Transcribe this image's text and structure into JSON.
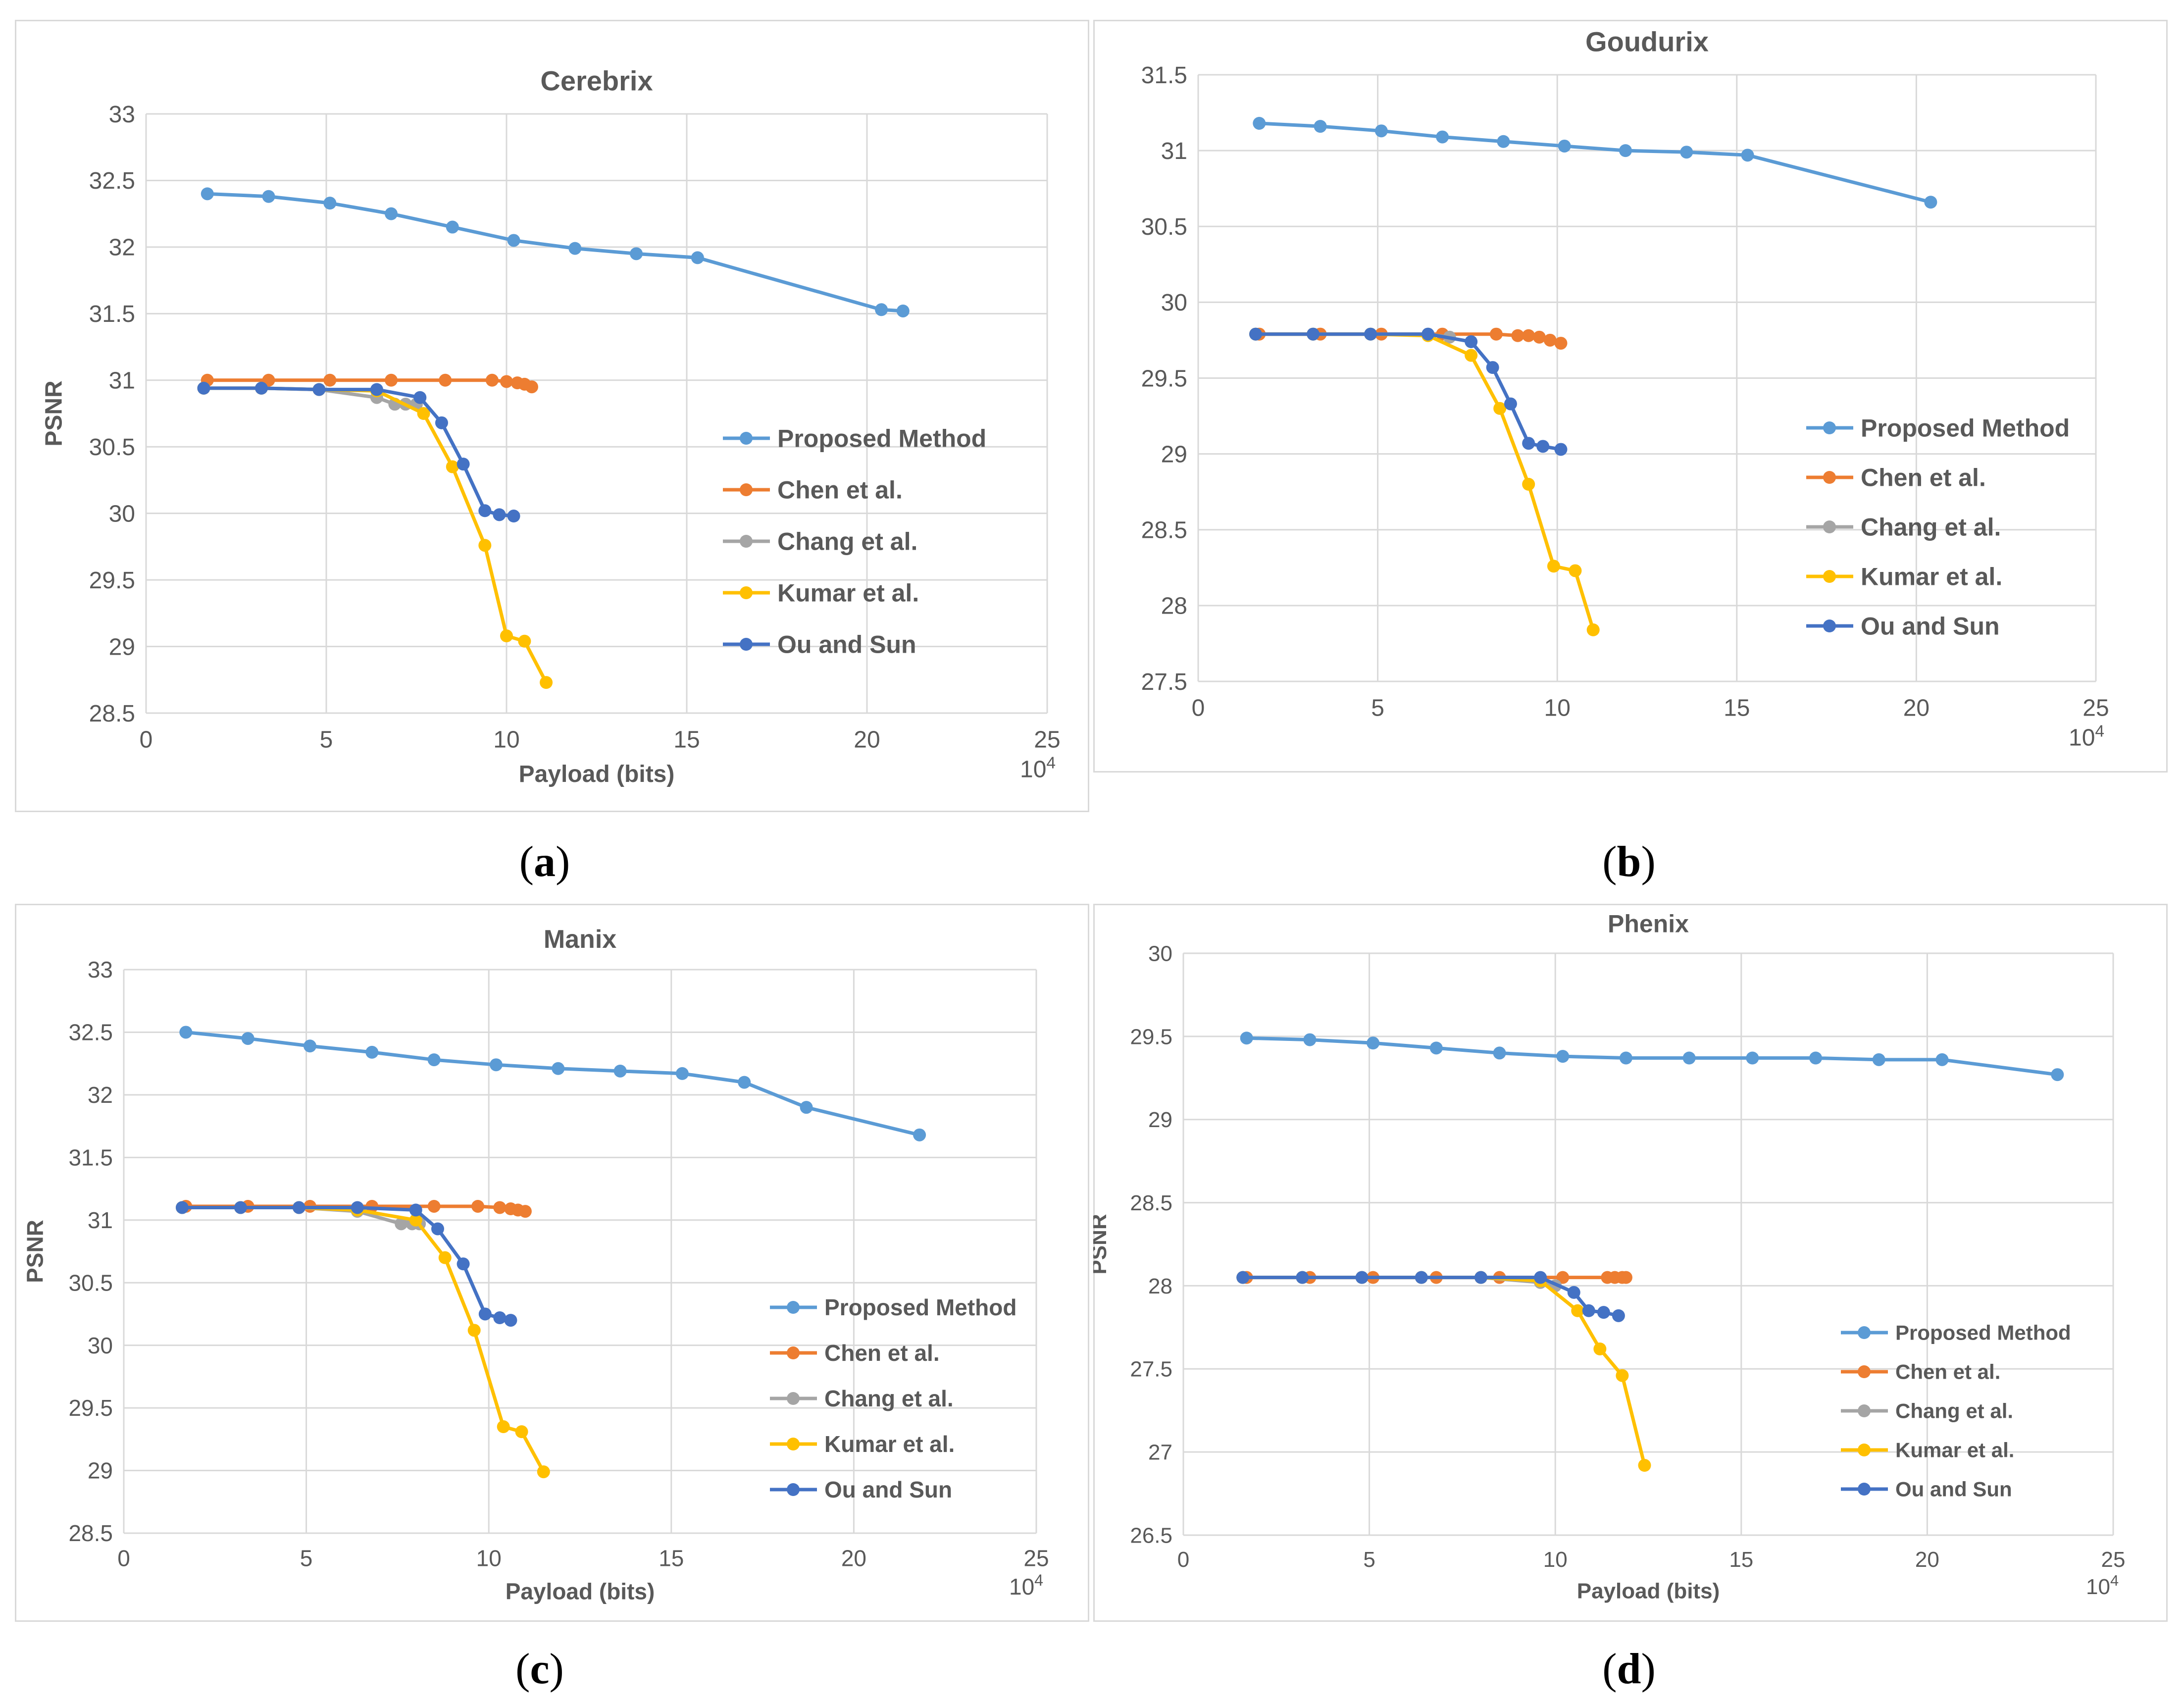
{
  "figure": {
    "panel_labels": [
      "a",
      "b",
      "c",
      "d"
    ]
  },
  "chart_data": [
    {
      "type": "line",
      "title": "Cerebrix",
      "xlabel": "Payload (bits)",
      "ylabel": "PSNR",
      "x_multiplier_label": "10^4",
      "xlim": [
        0,
        25
      ],
      "ylim": [
        28.5,
        33
      ],
      "xticks": [
        0,
        5,
        10,
        15,
        20,
        25
      ],
      "yticks": [
        28.5,
        29,
        29.5,
        30,
        30.5,
        31,
        31.5,
        32,
        32.5,
        33
      ],
      "series": [
        {
          "name": "Proposed Method",
          "color": "#5B9BD5",
          "x": [
            1.7,
            3.4,
            5.1,
            6.8,
            8.5,
            10.2,
            11.9,
            13.6,
            15.3,
            20.4,
            21.0
          ],
          "y": [
            32.4,
            32.38,
            32.33,
            32.25,
            32.15,
            32.05,
            31.99,
            31.95,
            31.92,
            31.53,
            31.52
          ]
        },
        {
          "name": "Chen et al.",
          "color": "#ED7D31",
          "x": [
            1.7,
            3.4,
            5.1,
            6.8,
            8.3,
            9.6,
            10.0,
            10.3,
            10.5,
            10.7
          ],
          "y": [
            31.0,
            31.0,
            31.0,
            31.0,
            31.0,
            31.0,
            30.99,
            30.98,
            30.97,
            30.95
          ]
        },
        {
          "name": "Chang et al.",
          "color": "#A5A5A5",
          "x": [
            1.6,
            3.2,
            4.8,
            6.4,
            6.9,
            7.2,
            7.5
          ],
          "y": [
            30.94,
            30.94,
            30.93,
            30.87,
            30.82,
            30.82,
            30.82
          ]
        },
        {
          "name": "Kumar et al.",
          "color": "#FFC000",
          "x": [
            1.6,
            3.2,
            4.8,
            6.4,
            7.7,
            8.5,
            9.4,
            10.0,
            10.5,
            11.1
          ],
          "y": [
            30.94,
            30.94,
            30.93,
            30.92,
            30.75,
            30.35,
            29.76,
            29.08,
            29.04,
            28.73
          ]
        },
        {
          "name": "Ou and Sun",
          "color": "#4472C4",
          "x": [
            1.6,
            3.2,
            4.8,
            6.4,
            7.6,
            8.2,
            8.8,
            9.4,
            9.8,
            10.2
          ],
          "y": [
            30.94,
            30.94,
            30.93,
            30.93,
            30.87,
            30.68,
            30.37,
            30.02,
            29.99,
            29.98
          ]
        }
      ]
    },
    {
      "type": "line",
      "title": "Goudurix",
      "xlabel": "",
      "ylabel": "",
      "x_multiplier_label": "10^4",
      "xlim": [
        0,
        25
      ],
      "ylim": [
        27.5,
        31.5
      ],
      "xticks": [
        0,
        5,
        10,
        15,
        20,
        25
      ],
      "yticks": [
        27.5,
        28,
        28.5,
        29,
        29.5,
        30,
        30.5,
        31,
        31.5
      ],
      "series": [
        {
          "name": "Proposed Method",
          "color": "#5B9BD5",
          "x": [
            1.7,
            3.4,
            5.1,
            6.8,
            8.5,
            10.2,
            11.9,
            13.6,
            15.3,
            20.4
          ],
          "y": [
            31.18,
            31.16,
            31.13,
            31.09,
            31.06,
            31.03,
            31.0,
            30.99,
            30.97,
            30.66
          ]
        },
        {
          "name": "Chen et al.",
          "color": "#ED7D31",
          "x": [
            1.7,
            3.4,
            5.1,
            6.8,
            8.3,
            8.9,
            9.2,
            9.5,
            9.8,
            10.1
          ],
          "y": [
            29.79,
            29.79,
            29.79,
            29.79,
            29.79,
            29.78,
            29.78,
            29.77,
            29.75,
            29.73
          ]
        },
        {
          "name": "Chang et al.",
          "color": "#A5A5A5",
          "x": [
            1.6,
            3.2,
            4.8,
            6.4,
            7.0
          ],
          "y": [
            29.79,
            29.79,
            29.79,
            29.79,
            29.77
          ]
        },
        {
          "name": "Kumar et al.",
          "color": "#FFC000",
          "x": [
            1.6,
            3.2,
            4.8,
            6.4,
            7.6,
            8.4,
            9.2,
            9.9,
            10.5,
            11.0
          ],
          "y": [
            29.79,
            29.79,
            29.79,
            29.78,
            29.65,
            29.3,
            28.8,
            28.26,
            28.23,
            27.84
          ]
        },
        {
          "name": "Ou and Sun",
          "color": "#4472C4",
          "x": [
            1.6,
            3.2,
            4.8,
            6.4,
            7.6,
            8.2,
            8.7,
            9.2,
            9.6,
            10.1
          ],
          "y": [
            29.79,
            29.79,
            29.79,
            29.79,
            29.74,
            29.57,
            29.33,
            29.07,
            29.05,
            29.03
          ]
        }
      ]
    },
    {
      "type": "line",
      "title": "Manix",
      "xlabel": "Payload (bits)",
      "ylabel": "PSNR",
      "x_multiplier_label": "10^4",
      "xlim": [
        0,
        25
      ],
      "ylim": [
        28.5,
        33
      ],
      "xticks": [
        0,
        5,
        10,
        15,
        20,
        25
      ],
      "yticks": [
        28.5,
        29,
        29.5,
        30,
        30.5,
        31,
        31.5,
        32,
        32.5,
        33
      ],
      "series": [
        {
          "name": "Proposed Method",
          "color": "#5B9BD5",
          "x": [
            1.7,
            3.4,
            5.1,
            6.8,
            8.5,
            10.2,
            11.9,
            13.6,
            15.3,
            17.0,
            18.7,
            21.8
          ],
          "y": [
            32.5,
            32.45,
            32.39,
            32.34,
            32.28,
            32.24,
            32.21,
            32.19,
            32.17,
            32.1,
            31.9,
            31.68
          ]
        },
        {
          "name": "Chen et al.",
          "color": "#ED7D31",
          "x": [
            1.7,
            3.4,
            5.1,
            6.8,
            8.5,
            9.7,
            10.3,
            10.6,
            10.8,
            11.0
          ],
          "y": [
            31.11,
            31.11,
            31.11,
            31.11,
            31.11,
            31.11,
            31.1,
            31.09,
            31.08,
            31.07
          ]
        },
        {
          "name": "Chang et al.",
          "color": "#A5A5A5",
          "x": [
            1.6,
            3.2,
            4.8,
            6.4,
            7.6,
            7.9,
            8.1
          ],
          "y": [
            31.1,
            31.1,
            31.1,
            31.07,
            30.97,
            30.97,
            30.97
          ]
        },
        {
          "name": "Kumar et al.",
          "color": "#FFC000",
          "x": [
            1.6,
            3.2,
            4.8,
            6.4,
            8.0,
            8.8,
            9.6,
            10.4,
            10.9,
            11.5
          ],
          "y": [
            31.1,
            31.1,
            31.1,
            31.08,
            31.0,
            30.7,
            30.12,
            29.35,
            29.31,
            28.99
          ]
        },
        {
          "name": "Ou and Sun",
          "color": "#4472C4",
          "x": [
            1.6,
            3.2,
            4.8,
            6.4,
            8.0,
            8.6,
            9.3,
            9.9,
            10.3,
            10.6
          ],
          "y": [
            31.1,
            31.1,
            31.1,
            31.1,
            31.08,
            30.93,
            30.65,
            30.25,
            30.22,
            30.2
          ]
        }
      ]
    },
    {
      "type": "line",
      "title": "Phenix",
      "xlabel": "Payload (bits)",
      "ylabel": "PSNR",
      "x_multiplier_label": "10^4",
      "xlim": [
        0,
        25
      ],
      "ylim": [
        26.5,
        30
      ],
      "xticks": [
        0,
        5,
        10,
        15,
        20,
        25
      ],
      "yticks": [
        26.5,
        27,
        27.5,
        28,
        28.5,
        29,
        29.5,
        30
      ],
      "series": [
        {
          "name": "Proposed Method",
          "color": "#5B9BD5",
          "x": [
            1.7,
            3.4,
            5.1,
            6.8,
            8.5,
            10.2,
            11.9,
            13.6,
            15.3,
            17.0,
            18.7,
            20.4,
            23.5
          ],
          "y": [
            29.49,
            29.48,
            29.46,
            29.43,
            29.4,
            29.38,
            29.37,
            29.37,
            29.37,
            29.37,
            29.36,
            29.36,
            29.27
          ]
        },
        {
          "name": "Chen et al.",
          "color": "#ED7D31",
          "x": [
            1.7,
            3.4,
            5.1,
            6.8,
            8.5,
            10.2,
            11.4,
            11.6,
            11.8,
            11.9
          ],
          "y": [
            28.05,
            28.05,
            28.05,
            28.05,
            28.05,
            28.05,
            28.05,
            28.05,
            28.05,
            28.05
          ]
        },
        {
          "name": "Chang et al.",
          "color": "#A5A5A5",
          "x": [
            1.6,
            3.2,
            4.8,
            6.4,
            8.0,
            9.6,
            10.0
          ],
          "y": [
            28.05,
            28.05,
            28.05,
            28.05,
            28.05,
            28.02,
            28.0
          ]
        },
        {
          "name": "Kumar et al.",
          "color": "#FFC000",
          "x": [
            1.6,
            3.2,
            4.8,
            6.4,
            8.0,
            9.6,
            10.6,
            11.2,
            11.8,
            12.4
          ],
          "y": [
            28.05,
            28.05,
            28.05,
            28.05,
            28.05,
            28.03,
            27.85,
            27.62,
            27.46,
            26.92
          ]
        },
        {
          "name": "Ou and Sun",
          "color": "#4472C4",
          "x": [
            1.6,
            3.2,
            4.8,
            6.4,
            8.0,
            9.6,
            10.5,
            10.9,
            11.3,
            11.7
          ],
          "y": [
            28.05,
            28.05,
            28.05,
            28.05,
            28.05,
            28.05,
            27.96,
            27.85,
            27.84,
            27.82
          ]
        }
      ]
    }
  ]
}
